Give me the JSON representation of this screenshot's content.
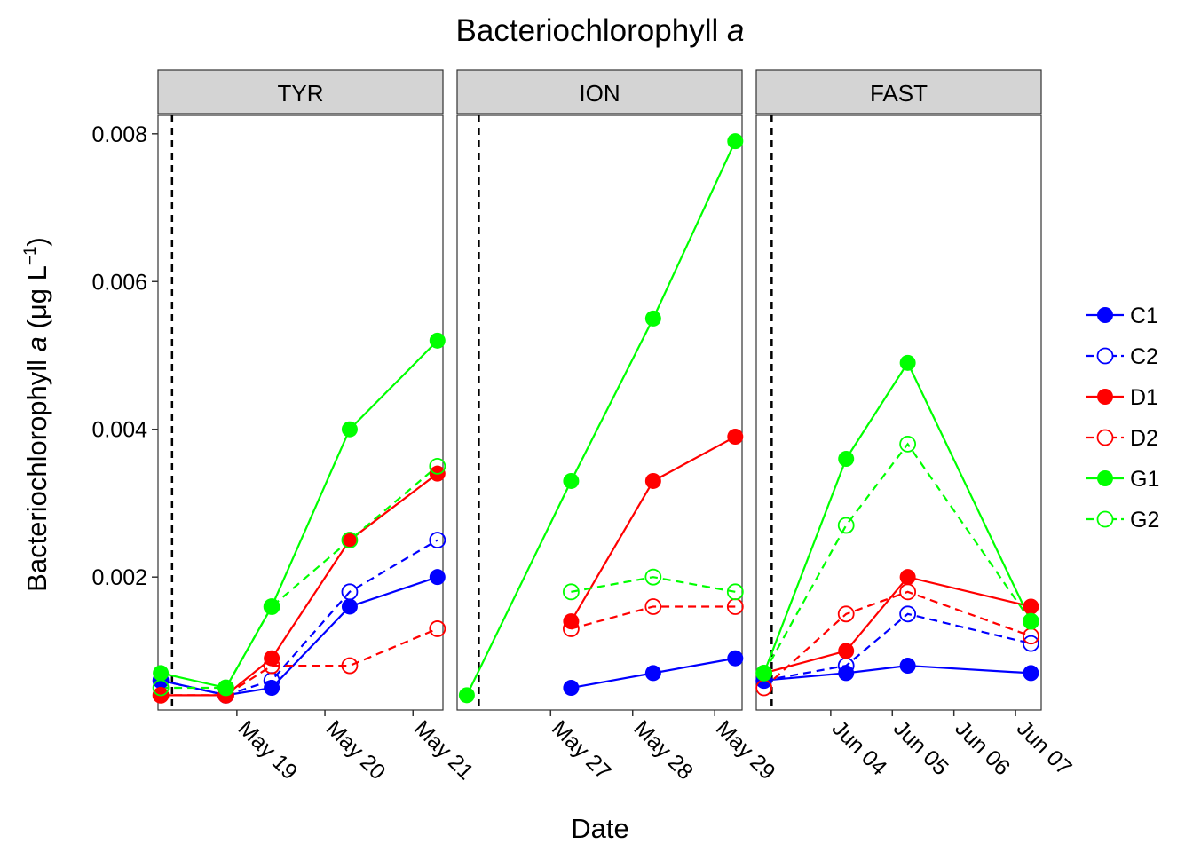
{
  "chart_data": {
    "type": "line",
    "title_main": "Bacteriochlorophyll ",
    "title_italic": "a",
    "xlabel": "Date",
    "ylabel_main": "Bacteriochlorophyll ",
    "ylabel_italic": "a",
    "ylabel_unit_open": " (",
    "ylabel_mu": "μ",
    "ylabel_unit": "g L",
    "ylabel_exp": "−1",
    "ylabel_unit_close": ")",
    "ylim": [
      0.0002,
      0.00825
    ],
    "yticks": [
      "0.002",
      "0.004",
      "0.006",
      "0.008"
    ],
    "grid": false,
    "legend_position": "right",
    "series_styles": {
      "C1": {
        "color": "#0000ff",
        "filled": true,
        "dashed": false
      },
      "C2": {
        "color": "#0000ff",
        "filled": false,
        "dashed": true
      },
      "D1": {
        "color": "#ff0000",
        "filled": true,
        "dashed": false
      },
      "D2": {
        "color": "#ff0000",
        "filled": false,
        "dashed": true
      },
      "G1": {
        "color": "#00ff00",
        "filled": true,
        "dashed": false
      },
      "G2": {
        "color": "#00ff00",
        "filled": false,
        "dashed": true
      }
    },
    "legend": [
      "C1",
      "C2",
      "D1",
      "D2",
      "G1",
      "G2"
    ],
    "panels": [
      {
        "name": "TYR",
        "xlim": [
          "2016-05-18T02:30",
          "2016-05-21T08:10"
        ],
        "xticks": [
          {
            "label": "May 19",
            "date": "2016-05-19T00:00"
          },
          {
            "label": "May 20",
            "date": "2016-05-20T00:00"
          },
          {
            "label": "May 21",
            "date": "2016-05-21T00:00"
          }
        ],
        "marker_line": "2016-05-18T06:20",
        "series": [
          {
            "name": "C1",
            "points": [
              [
                "2016-05-18T03:15",
                0.0006
              ],
              [
                "2016-05-18T21:00",
                0.0004
              ],
              [
                "2016-05-19T09:30",
                0.0005
              ],
              [
                "2016-05-20T06:45",
                0.0016
              ],
              [
                "2016-05-21T06:40",
                0.002
              ]
            ]
          },
          {
            "name": "C2",
            "points": [
              [
                "2016-05-18T03:15",
                0.0006
              ],
              [
                "2016-05-18T21:00",
                0.0004
              ],
              [
                "2016-05-19T09:30",
                0.0006
              ],
              [
                "2016-05-20T06:45",
                0.0018
              ],
              [
                "2016-05-21T06:40",
                0.0025
              ]
            ]
          },
          {
            "name": "D1",
            "points": [
              [
                "2016-05-18T03:15",
                0.0004
              ],
              [
                "2016-05-18T21:00",
                0.0004
              ],
              [
                "2016-05-19T09:30",
                0.0009
              ],
              [
                "2016-05-20T06:45",
                0.0025
              ],
              [
                "2016-05-21T06:40",
                0.0034
              ]
            ]
          },
          {
            "name": "D2",
            "points": [
              [
                "2016-05-18T03:15",
                0.0004
              ],
              [
                "2016-05-18T21:00",
                0.0004
              ],
              [
                "2016-05-19T09:30",
                0.0008
              ],
              [
                "2016-05-20T06:45",
                0.0008
              ],
              [
                "2016-05-21T06:40",
                0.0013
              ]
            ]
          },
          {
            "name": "G1",
            "points": [
              [
                "2016-05-18T03:15",
                0.0007
              ],
              [
                "2016-05-18T21:00",
                0.0005
              ],
              [
                "2016-05-19T09:30",
                0.0016
              ],
              [
                "2016-05-20T06:45",
                0.004
              ],
              [
                "2016-05-21T06:40",
                0.0052
              ]
            ]
          },
          {
            "name": "G2",
            "points": [
              [
                "2016-05-18T03:15",
                0.0005
              ],
              [
                "2016-05-18T21:00",
                0.0005
              ],
              [
                "2016-05-19T09:30",
                0.0016
              ],
              [
                "2016-05-20T06:45",
                0.0025
              ],
              [
                "2016-05-21T06:40",
                0.0035
              ]
            ]
          }
        ]
      },
      {
        "name": "ION",
        "xlim": [
          "2016-05-25T20:40",
          "2016-05-29T08:00"
        ],
        "xticks": [
          {
            "label": "May 27",
            "date": "2016-05-27T00:00"
          },
          {
            "label": "May 28",
            "date": "2016-05-28T00:00"
          },
          {
            "label": "May 29",
            "date": "2016-05-29T00:00"
          }
        ],
        "marker_line": "2016-05-26T03:00",
        "series": [
          {
            "name": "C1",
            "points": [
              [
                "2016-05-27T06:00",
                0.0005
              ],
              [
                "2016-05-28T06:00",
                0.0007
              ],
              [
                "2016-05-29T06:00",
                0.0009
              ]
            ]
          },
          {
            "name": "D1",
            "points": [
              [
                "2016-05-27T06:00",
                0.0014
              ],
              [
                "2016-05-28T06:00",
                0.0033
              ],
              [
                "2016-05-29T06:00",
                0.0039
              ]
            ]
          },
          {
            "name": "D2",
            "points": [
              [
                "2016-05-27T06:00",
                0.0013
              ],
              [
                "2016-05-28T06:00",
                0.0016
              ],
              [
                "2016-05-29T06:00",
                0.0016
              ]
            ]
          },
          {
            "name": "G1",
            "points": [
              [
                "2016-05-25T23:30",
                0.0004
              ],
              [
                "2016-05-27T06:00",
                0.0033
              ],
              [
                "2016-05-28T06:00",
                0.0055
              ],
              [
                "2016-05-29T06:00",
                0.0079
              ]
            ]
          },
          {
            "name": "G2",
            "points": [
              [
                "2016-05-27T06:00",
                0.0018
              ],
              [
                "2016-05-28T06:00",
                0.002
              ],
              [
                "2016-05-29T06:00",
                0.0018
              ]
            ]
          }
        ]
      },
      {
        "name": "FAST",
        "xlim": [
          "2016-06-02T19:00",
          "2016-06-07T10:00"
        ],
        "xticks": [
          {
            "label": "Jun 04",
            "date": "2016-06-04T00:00"
          },
          {
            "label": "Jun 05",
            "date": "2016-06-05T00:00"
          },
          {
            "label": "Jun 06",
            "date": "2016-06-06T00:00"
          },
          {
            "label": "Jun 07",
            "date": "2016-06-07T00:00"
          }
        ],
        "marker_line": "2016-06-03T01:00",
        "series": [
          {
            "name": "C1",
            "points": [
              [
                "2016-06-02T22:00",
                0.0006
              ],
              [
                "2016-06-04T06:00",
                0.0007
              ],
              [
                "2016-06-05T06:00",
                0.0008
              ],
              [
                "2016-06-07T06:00",
                0.0007
              ]
            ]
          },
          {
            "name": "C2",
            "points": [
              [
                "2016-06-02T22:00",
                0.0006
              ],
              [
                "2016-06-04T06:00",
                0.0008
              ],
              [
                "2016-06-05T06:00",
                0.0015
              ],
              [
                "2016-06-07T06:00",
                0.0011
              ]
            ]
          },
          {
            "name": "D1",
            "points": [
              [
                "2016-06-02T22:00",
                0.0007
              ],
              [
                "2016-06-04T06:00",
                0.001
              ],
              [
                "2016-06-05T06:00",
                0.002
              ],
              [
                "2016-06-07T06:00",
                0.0016
              ]
            ]
          },
          {
            "name": "D2",
            "points": [
              [
                "2016-06-02T22:00",
                0.0005
              ],
              [
                "2016-06-04T06:00",
                0.0015
              ],
              [
                "2016-06-05T06:00",
                0.0018
              ],
              [
                "2016-06-07T06:00",
                0.0012
              ]
            ]
          },
          {
            "name": "G1",
            "points": [
              [
                "2016-06-02T22:00",
                0.0007
              ],
              [
                "2016-06-04T06:00",
                0.0036
              ],
              [
                "2016-06-05T06:00",
                0.0049
              ],
              [
                "2016-06-07T06:00",
                0.0014
              ]
            ]
          },
          {
            "name": "G2",
            "points": [
              [
                "2016-06-02T22:00",
                0.0007
              ],
              [
                "2016-06-04T06:00",
                0.0027
              ],
              [
                "2016-06-05T06:00",
                0.0038
              ],
              [
                "2016-06-07T06:00",
                0.0014
              ]
            ]
          }
        ]
      }
    ]
  }
}
